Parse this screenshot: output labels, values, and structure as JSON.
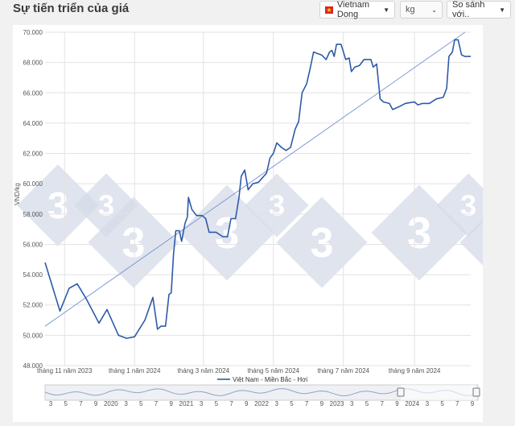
{
  "header": {
    "title": "Sự tiến triển của giá",
    "currency_label": "Vietnam Dong",
    "unit_label": "kg",
    "compare_label": "So sánh với.."
  },
  "colors": {
    "line": "#2e5aa8",
    "trend": "#7f9bd6",
    "flag": "#da251d",
    "watermark": "#d5dbe8"
  },
  "icons": {
    "flag": "vietnam-flag-icon",
    "dropdown": "chevron-down-icon",
    "watermark": "logo-333-watermark"
  },
  "chart_data": {
    "type": "line",
    "title": "",
    "xlabel": "",
    "ylabel": "VND/kg",
    "ylim": [
      48000,
      70000
    ],
    "y_ticks": [
      "48.000",
      "50.000",
      "52.000",
      "54.000",
      "56.000",
      "58.000",
      "60.000",
      "62.000",
      "64.000",
      "66.000",
      "68.000",
      "70.000"
    ],
    "x_range": [
      "2023-10-15",
      "2024-10-20"
    ],
    "x_tick_labels": [
      {
        "date": "2023-11-01",
        "label": "tháng 11 năm 2023"
      },
      {
        "date": "2024-01-01",
        "label": "tháng 1 năm 2024"
      },
      {
        "date": "2024-03-01",
        "label": "tháng 3 năm 2024"
      },
      {
        "date": "2024-05-01",
        "label": "tháng 5 năm 2024"
      },
      {
        "date": "2024-07-01",
        "label": "tháng 7 năm 2024"
      },
      {
        "date": "2024-09-01",
        "label": "tháng 9 năm 2024"
      }
    ],
    "grid": true,
    "legend": "bottom",
    "series": [
      {
        "name": "Việt Nam - Miền Bắc - Hơi",
        "points": [
          [
            "2023-10-15",
            54800
          ],
          [
            "2023-10-28",
            51600
          ],
          [
            "2023-11-05",
            53100
          ],
          [
            "2023-11-12",
            53400
          ],
          [
            "2023-11-20",
            52400
          ],
          [
            "2023-12-01",
            50800
          ],
          [
            "2023-12-08",
            51700
          ],
          [
            "2023-12-18",
            50000
          ],
          [
            "2023-12-25",
            49800
          ],
          [
            "2024-01-01",
            49900
          ],
          [
            "2024-01-10",
            51000
          ],
          [
            "2024-01-17",
            52500
          ],
          [
            "2024-01-21",
            50400
          ],
          [
            "2024-01-24",
            50600
          ],
          [
            "2024-01-28",
            50600
          ],
          [
            "2024-01-31",
            52700
          ],
          [
            "2024-02-02",
            52800
          ],
          [
            "2024-02-04",
            55400
          ],
          [
            "2024-02-06",
            56900
          ],
          [
            "2024-02-09",
            56900
          ],
          [
            "2024-02-11",
            56200
          ],
          [
            "2024-02-14",
            57400
          ],
          [
            "2024-02-16",
            57800
          ],
          [
            "2024-02-17",
            59100
          ],
          [
            "2024-02-20",
            58300
          ],
          [
            "2024-02-24",
            57900
          ],
          [
            "2024-02-29",
            57900
          ],
          [
            "2024-03-03",
            57700
          ],
          [
            "2024-03-06",
            56800
          ],
          [
            "2024-03-12",
            56800
          ],
          [
            "2024-03-18",
            56500
          ],
          [
            "2024-03-22",
            56500
          ],
          [
            "2024-03-25",
            57700
          ],
          [
            "2024-03-29",
            57700
          ],
          [
            "2024-04-01",
            59100
          ],
          [
            "2024-04-03",
            60500
          ],
          [
            "2024-04-06",
            60900
          ],
          [
            "2024-04-09",
            59600
          ],
          [
            "2024-04-13",
            60000
          ],
          [
            "2024-04-18",
            60100
          ],
          [
            "2024-04-25",
            60700
          ],
          [
            "2024-04-28",
            61700
          ],
          [
            "2024-05-01",
            62000
          ],
          [
            "2024-05-04",
            62700
          ],
          [
            "2024-05-08",
            62400
          ],
          [
            "2024-05-12",
            62200
          ],
          [
            "2024-05-16",
            62400
          ],
          [
            "2024-05-20",
            63600
          ],
          [
            "2024-05-23",
            64100
          ],
          [
            "2024-05-26",
            66000
          ],
          [
            "2024-05-30",
            66600
          ],
          [
            "2024-06-02",
            67600
          ],
          [
            "2024-06-05",
            68700
          ],
          [
            "2024-06-08",
            68600
          ],
          [
            "2024-06-12",
            68500
          ],
          [
            "2024-06-16",
            68200
          ],
          [
            "2024-06-19",
            68700
          ],
          [
            "2024-06-21",
            68800
          ],
          [
            "2024-06-23",
            68400
          ],
          [
            "2024-06-25",
            69200
          ],
          [
            "2024-06-29",
            69200
          ],
          [
            "2024-07-03",
            68200
          ],
          [
            "2024-07-06",
            68300
          ],
          [
            "2024-07-08",
            67400
          ],
          [
            "2024-07-11",
            67700
          ],
          [
            "2024-07-15",
            67800
          ],
          [
            "2024-07-19",
            68200
          ],
          [
            "2024-07-25",
            68200
          ],
          [
            "2024-07-27",
            67700
          ],
          [
            "2024-07-30",
            67900
          ],
          [
            "2024-08-02",
            65600
          ],
          [
            "2024-08-05",
            65400
          ],
          [
            "2024-08-10",
            65300
          ],
          [
            "2024-08-13",
            64900
          ],
          [
            "2024-08-19",
            65100
          ],
          [
            "2024-08-24",
            65300
          ],
          [
            "2024-09-01",
            65400
          ],
          [
            "2024-09-04",
            65200
          ],
          [
            "2024-09-08",
            65300
          ],
          [
            "2024-09-14",
            65300
          ],
          [
            "2024-09-20",
            65600
          ],
          [
            "2024-09-26",
            65700
          ],
          [
            "2024-09-29",
            66300
          ],
          [
            "2024-10-01",
            68400
          ],
          [
            "2024-10-04",
            68700
          ],
          [
            "2024-10-06",
            69500
          ],
          [
            "2024-10-09",
            69500
          ],
          [
            "2024-10-12",
            68500
          ],
          [
            "2024-10-15",
            68400
          ],
          [
            "2024-10-20",
            68400
          ]
        ]
      }
    ],
    "trendline": {
      "start": [
        "2023-10-15",
        50600
      ],
      "end": [
        "2024-10-15",
        70000
      ]
    },
    "navigator": {
      "labels": [
        "3",
        "5",
        "7",
        "9",
        "2020",
        "3",
        "5",
        "7",
        "9",
        "2021",
        "3",
        "5",
        "7",
        "9",
        "2022",
        "3",
        "5",
        "7",
        "9",
        "2023",
        "3",
        "5",
        "7",
        "9",
        "2024",
        "3",
        "5",
        "7",
        "9"
      ]
    }
  }
}
